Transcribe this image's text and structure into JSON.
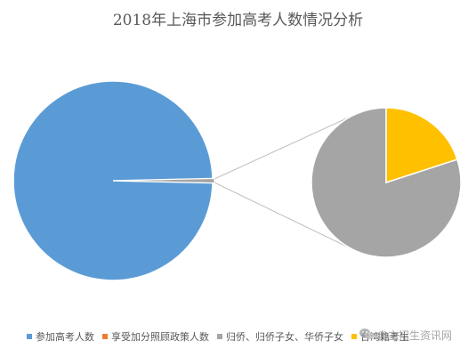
{
  "chart_data": {
    "type": "bar-of-pie",
    "title": "2018年上海市参加高考人数情况分析",
    "series": [
      {
        "name": "参加高考人数",
        "value": 99.3,
        "color": "#5B9BD5"
      },
      {
        "name": "享受加分照顾政策人数",
        "value": 0.0,
        "color": "#ED7D31"
      },
      {
        "name": "归侨、归侨子女、华侨子女",
        "value": 0.56,
        "color": "#A5A5A5"
      },
      {
        "name": "台湾籍考生",
        "value": 0.14,
        "color": "#FFC000"
      }
    ],
    "secondary_pie_categories": [
      "归侨、归侨子女、华侨子女",
      "台湾籍考生"
    ],
    "legend_position": "bottom",
    "grid": false
  },
  "legend": {
    "items": [
      {
        "label": "参加高考人数",
        "color": "#5B9BD5"
      },
      {
        "label": "享受加分照顾政策人数",
        "color": "#ED7D31"
      },
      {
        "label": "归侨、归侨子女、华侨子女",
        "color": "#A5A5A5"
      },
      {
        "label": "台湾籍考生",
        "color": "#FFC000"
      }
    ]
  },
  "watermark": {
    "text": "自主招生资讯网",
    "icon": "wechat-icon"
  }
}
